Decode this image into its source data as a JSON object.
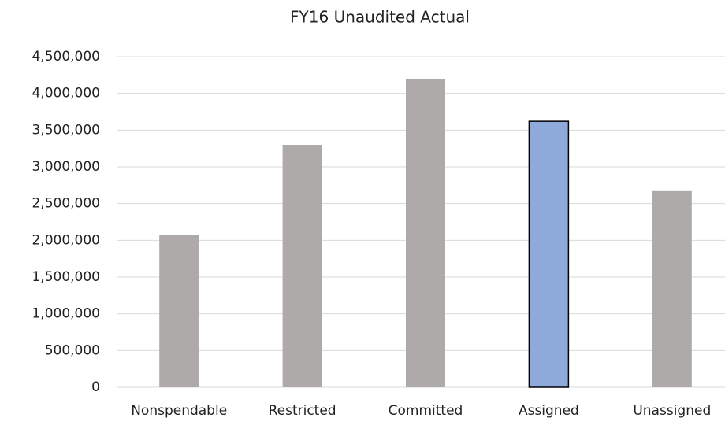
{
  "chart_data": {
    "type": "bar",
    "title": "FY16 Unaudited Actual",
    "categories": [
      "Nonspendable",
      "Restricted",
      "Committed",
      "Assigned",
      "Unassigned"
    ],
    "values": [
      2070000,
      3300000,
      4200000,
      3620000,
      2670000
    ],
    "colors": [
      "#aeaaaa",
      "#aeaaaa",
      "#aeaaaa",
      "#8eaadb",
      "#aeaaaa"
    ],
    "outlined": [
      false,
      false,
      false,
      true,
      false
    ],
    "ylim": [
      0,
      4500000
    ],
    "yticks": [
      0,
      {
        "value": 500000,
        "label": "500,000"
      },
      {
        "value": 1000000,
        "label": "1,000,000"
      },
      {
        "value": 1500000,
        "label": "1,500,000"
      },
      {
        "value": 2000000,
        "label": "2,000,000"
      },
      {
        "value": 2500000,
        "label": "2,500,000"
      },
      {
        "value": 3000000,
        "label": "3,000,000"
      },
      {
        "value": 3500000,
        "label": "3,500,000"
      },
      {
        "value": 4000000,
        "label": "4,000,000"
      },
      {
        "value": 4500000,
        "label": "4,500,000"
      }
    ],
    "grid": true
  }
}
